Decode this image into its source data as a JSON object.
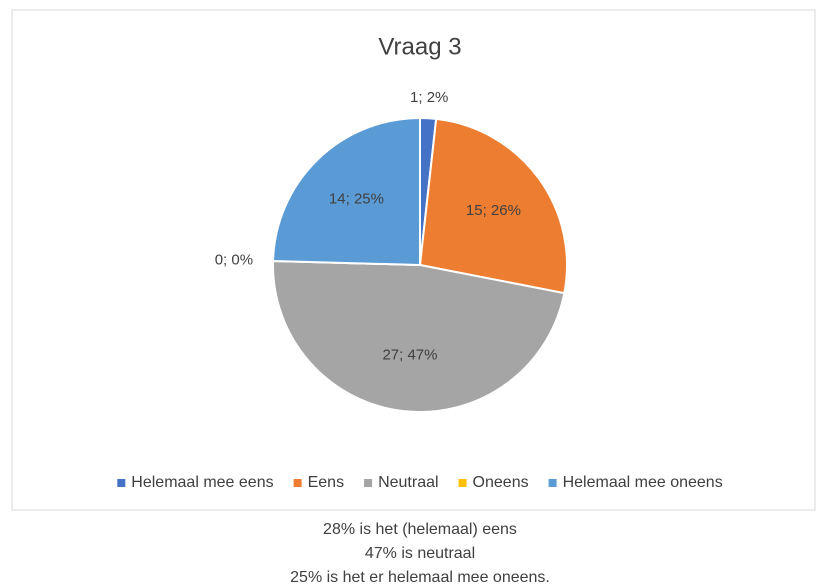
{
  "chart_data": {
    "type": "pie",
    "title": "Vraag 3",
    "categories": [
      "Helemaal mee eens",
      "Eens",
      "Neutraal",
      "Oneens",
      "Helemaal mee oneens"
    ],
    "values": [
      1,
      15,
      27,
      0,
      14
    ],
    "value_labels": [
      "1; 2%",
      "15; 26%",
      "27; 47%",
      "0; 0%",
      "14; 25%"
    ],
    "colors": [
      "#4472c4",
      "#ed7d31",
      "#a5a5a5",
      "#ffc000",
      "#5b9bd5"
    ],
    "legend": "bottom"
  },
  "caption": [
    "28% is het (helemaal) eens",
    "47% is neutraal",
    "25% is het er helemaal mee oneens."
  ]
}
